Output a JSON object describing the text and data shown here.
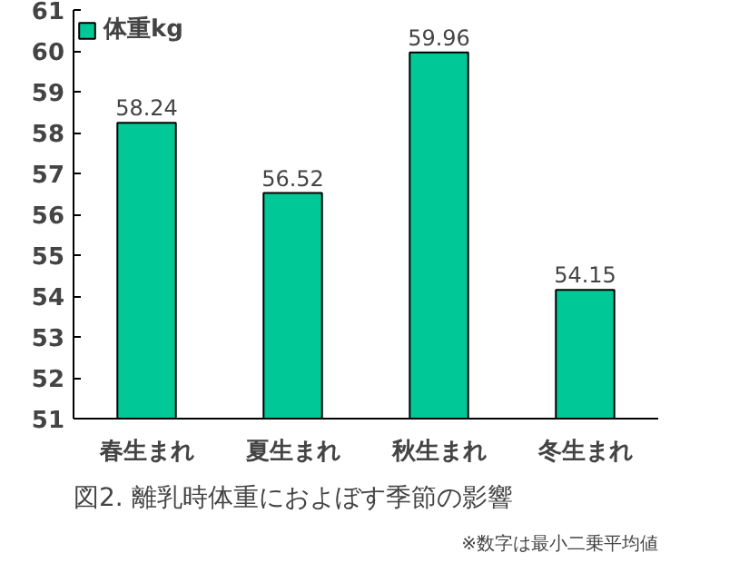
{
  "chart_data": {
    "type": "bar",
    "title": "図2. 離乳時体重におよぼす季節の影響",
    "annotations": [
      "※数字は最小二乗平均値"
    ],
    "categories": [
      "春生まれ",
      "夏生まれ",
      "秋生まれ",
      "冬生まれ"
    ],
    "series": [
      {
        "name": "体重kg",
        "color": "#00c896",
        "values": [
          58.24,
          56.52,
          59.96,
          54.15
        ]
      }
    ],
    "ylim": [
      51,
      61
    ],
    "yticks": [
      51,
      52,
      53,
      54,
      55,
      56,
      57,
      58,
      59,
      60,
      61
    ],
    "data_labels": true,
    "grid": false,
    "legend": "top left"
  }
}
